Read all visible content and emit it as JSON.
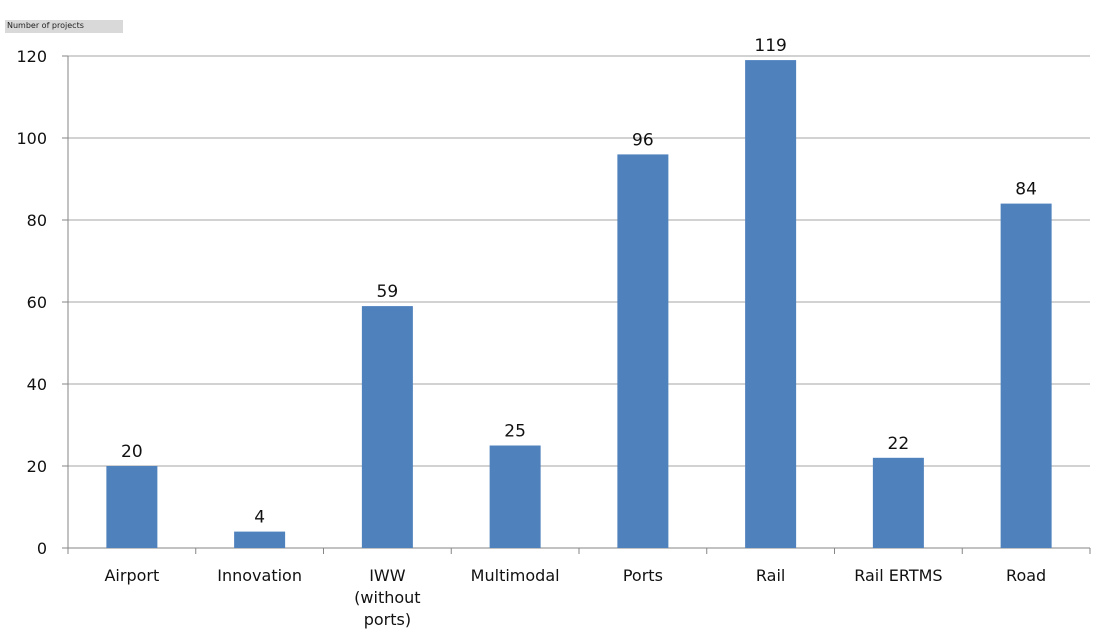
{
  "chart_data": {
    "type": "bar",
    "ylabel": "Number of projects",
    "categories": [
      "Airport",
      "Innovation",
      "IWW\n(without\nports)",
      "Multimodal",
      "Ports",
      "Rail",
      "Rail ERTMS",
      "Road"
    ],
    "values": [
      20,
      4,
      59,
      25,
      96,
      119,
      22,
      84
    ],
    "yticks": [
      0,
      20,
      40,
      60,
      80,
      100,
      120
    ],
    "ylim": [
      0,
      120
    ],
    "grid": true,
    "bar_color": "#4f81bd",
    "grid_color": "#a6a6a6"
  }
}
